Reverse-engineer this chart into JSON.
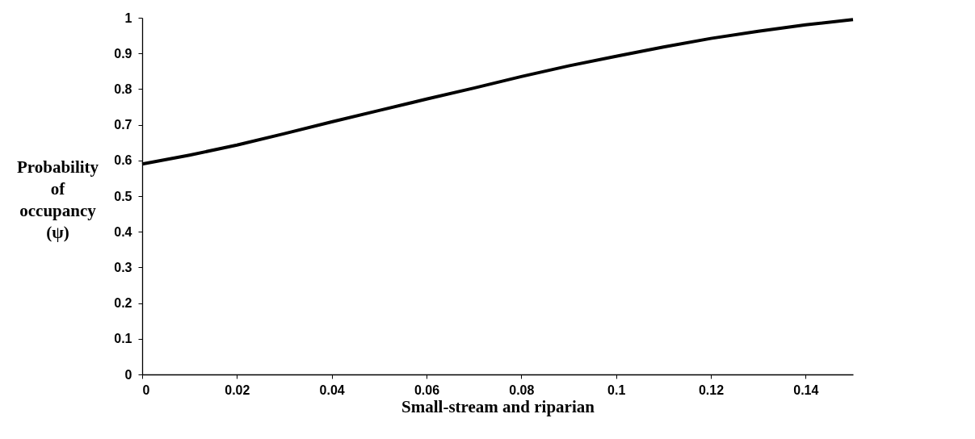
{
  "chart_data": {
    "type": "line",
    "xlabel": "Small-stream and riparian",
    "ylabel": "Probability of occupancy (ψ)",
    "x": [
      0,
      0.01,
      0.02,
      0.03,
      0.04,
      0.05,
      0.06,
      0.07,
      0.08,
      0.09,
      0.1,
      0.11,
      0.12,
      0.13,
      0.14,
      0.15
    ],
    "series": [
      {
        "color": "#000000",
        "values": [
          0.59,
          0.615,
          0.643,
          0.675,
          0.708,
          0.74,
          0.772,
          0.803,
          0.835,
          0.865,
          0.892,
          0.918,
          0.942,
          0.962,
          0.98,
          0.995
        ]
      }
    ],
    "xlim": [
      0,
      0.15
    ],
    "xticks": [
      0,
      0.02,
      0.04,
      0.06,
      0.08,
      0.1,
      0.12,
      0.14
    ],
    "ylim": [
      0,
      1
    ],
    "yticks": [
      0,
      0.1,
      0.2,
      0.3,
      0.4,
      0.5,
      0.6,
      0.7,
      0.8,
      0.9,
      1
    ],
    "grid": false,
    "marker": "none",
    "line_style": "solid"
  }
}
